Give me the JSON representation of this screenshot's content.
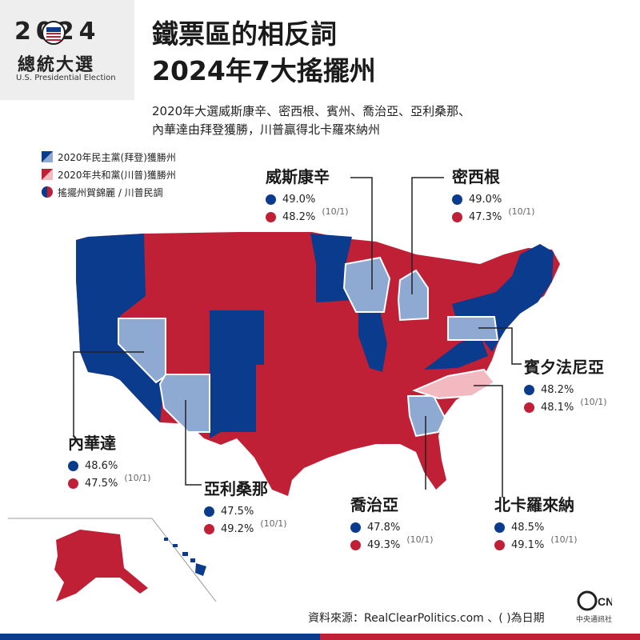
{
  "logo": {
    "year": "2024",
    "title": "總統大選",
    "subtitle": "U.S. Presidential Election"
  },
  "title": {
    "line1": "鐵票區的相反詞",
    "line2": "2024年7大搖擺州"
  },
  "subtitle": {
    "line1": "2020年大選威斯康辛、密西根、賓州、喬治亞、亞利桑那、",
    "line2": "內華達由拜登獲勝，川普贏得北卡羅來納州"
  },
  "legend": [
    {
      "label": "2020年民主黨(拜登)獲勝州",
      "color": "#0b3b8c"
    },
    {
      "label": "2020年共和黨(川普)獲勝州",
      "color": "#c02035"
    },
    {
      "label": "搖擺州賀錦麗 / 川普民調",
      "color": "#0b3b8c"
    }
  ],
  "colors": {
    "dem": "#0b3b8c",
    "rep": "#c02035",
    "swing_dem": "#8eaad2",
    "swing_rep": "#f2b9c0"
  },
  "states": [
    {
      "name": "威斯康辛",
      "harris": "49.0%",
      "trump": "48.2%",
      "date": "(10/1)"
    },
    {
      "name": "密西根",
      "harris": "49.0%",
      "trump": "47.3%",
      "date": "(10/1)"
    },
    {
      "name": "賓夕法尼亞",
      "harris": "48.2%",
      "trump": "48.1%",
      "date": "(10/1)"
    },
    {
      "name": "內華達",
      "harris": "48.6%",
      "trump": "47.5%",
      "date": "(10/1)"
    },
    {
      "name": "亞利桑那",
      "harris": "47.5%",
      "trump": "49.2%",
      "date": "(10/1)"
    },
    {
      "name": "喬治亞",
      "harris": "47.8%",
      "trump": "49.3%",
      "date": "(10/1)"
    },
    {
      "name": "北卡羅來納",
      "harris": "48.5%",
      "trump": "49.1%",
      "date": "(10/1)"
    }
  ],
  "source": "資料來源：RealClearPolitics.com 、( )為日期",
  "credit": {
    "logo": "CNA",
    "name": "中央通訊社"
  }
}
